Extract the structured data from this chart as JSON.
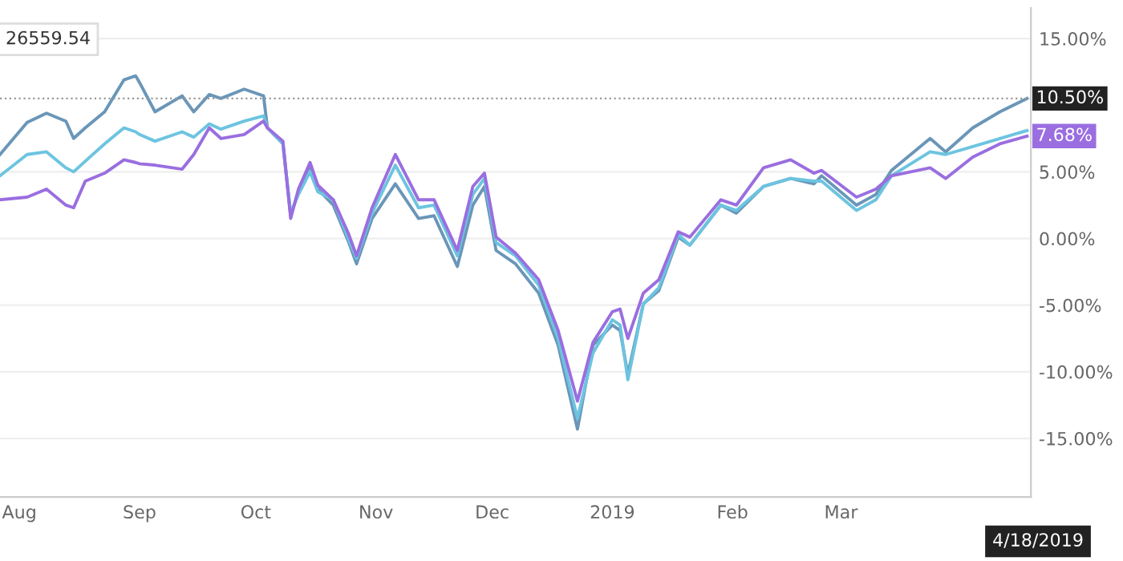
{
  "chart_data": {
    "type": "line",
    "x": [
      "2018-07-27",
      "2018-08-03",
      "2018-08-08",
      "2018-08-13",
      "2018-08-15",
      "2018-08-18",
      "2018-08-23",
      "2018-08-28",
      "2018-08-31",
      "2018-09-01",
      "2018-09-05",
      "2018-09-12",
      "2018-09-15",
      "2018-09-19",
      "2018-09-22",
      "2018-09-28",
      "2018-10-03",
      "2018-10-04",
      "2018-10-08",
      "2018-10-10",
      "2018-10-12",
      "2018-10-15",
      "2018-10-17",
      "2018-10-21",
      "2018-10-25",
      "2018-10-27",
      "2018-10-31",
      "2018-11-06",
      "2018-11-12",
      "2018-11-16",
      "2018-11-22",
      "2018-11-26",
      "2018-11-29",
      "2018-12-02",
      "2018-12-07",
      "2018-12-13",
      "2018-12-18",
      "2018-12-23",
      "2018-12-27",
      "2019-01-01",
      "2019-01-03",
      "2019-01-05",
      "2019-01-09",
      "2019-01-13",
      "2019-01-18",
      "2019-01-21",
      "2019-01-29",
      "2019-02-02",
      "2019-02-09",
      "2019-02-16",
      "2019-02-22",
      "2019-02-24",
      "2019-03-05",
      "2019-03-10",
      "2019-03-14",
      "2019-03-24",
      "2019-03-28",
      "2019-04-04",
      "2019-04-11",
      "2019-04-18"
    ],
    "series": [
      {
        "color": "#6a96b8",
        "values": [
          6.3,
          8.7,
          9.4,
          8.8,
          7.5,
          8.3,
          9.5,
          11.9,
          12.2,
          11.7,
          9.5,
          10.7,
          9.5,
          10.8,
          10.5,
          11.2,
          10.7,
          8.3,
          7.1,
          1.7,
          3.5,
          5.5,
          3.7,
          2.5,
          -0.3,
          -1.9,
          1.5,
          4.1,
          1.5,
          1.7,
          -2.1,
          2.5,
          3.9,
          -0.9,
          -1.9,
          -4.1,
          -8.0,
          -14.3,
          -8.0,
          -6.5,
          -6.9,
          -10.2,
          -4.9,
          -3.9,
          0.1,
          -0.5,
          2.5,
          1.9,
          3.9,
          4.5,
          4.1,
          4.7,
          2.5,
          3.3,
          5.1,
          7.5,
          6.5,
          8.3,
          9.5,
          10.5
        ]
      },
      {
        "color": "#6cc4e0",
        "values": [
          4.7,
          6.3,
          6.5,
          5.3,
          5.0,
          5.8,
          7.1,
          8.3,
          8.0,
          7.8,
          7.3,
          8.0,
          7.6,
          8.6,
          8.2,
          8.8,
          9.2,
          8.3,
          7.1,
          1.9,
          3.3,
          5.0,
          3.5,
          2.9,
          -0.1,
          -1.5,
          1.9,
          5.5,
          2.3,
          2.5,
          -1.3,
          3.3,
          4.5,
          -0.3,
          -1.3,
          -3.5,
          -7.5,
          -13.5,
          -8.6,
          -6.1,
          -6.5,
          -10.6,
          -4.9,
          -3.7,
          0.3,
          -0.5,
          2.5,
          2.1,
          3.9,
          4.5,
          4.3,
          4.3,
          2.1,
          2.9,
          4.7,
          6.5,
          6.3,
          6.9,
          7.5,
          8.1
        ]
      },
      {
        "color": "#9a6ee0",
        "values": [
          2.9,
          3.1,
          3.7,
          2.5,
          2.3,
          4.3,
          4.9,
          5.9,
          5.7,
          5.6,
          5.5,
          5.2,
          6.3,
          8.3,
          7.5,
          7.8,
          8.8,
          8.3,
          7.3,
          1.5,
          3.7,
          5.7,
          4.0,
          2.9,
          0.3,
          -1.3,
          2.3,
          6.3,
          2.9,
          2.9,
          -0.9,
          3.9,
          4.9,
          0.1,
          -1.1,
          -3.1,
          -6.9,
          -12.2,
          -7.8,
          -5.5,
          -5.3,
          -7.5,
          -4.1,
          -3.1,
          0.5,
          0.1,
          2.9,
          2.5,
          5.3,
          5.9,
          4.9,
          5.1,
          3.1,
          3.7,
          4.7,
          5.3,
          4.5,
          6.1,
          7.1,
          7.68
        ]
      }
    ],
    "xlim": [
      "2018-07-27",
      "2019-04-19"
    ],
    "xticks": [
      {
        "value": "2018-08-01",
        "label": "Aug"
      },
      {
        "value": "2018-09-01",
        "label": "Sep"
      },
      {
        "value": "2018-10-01",
        "label": "Oct"
      },
      {
        "value": "2018-11-01",
        "label": "Nov"
      },
      {
        "value": "2018-12-01",
        "label": "Dec"
      },
      {
        "value": "2019-01-01",
        "label": "2019"
      },
      {
        "value": "2019-02-01",
        "label": "Feb"
      },
      {
        "value": "2019-03-01",
        "label": "Mar"
      }
    ],
    "ylim": [
      -19.4,
      17.3
    ],
    "yticks": [
      {
        "value": 15,
        "label": "15.00%"
      },
      {
        "value": 5,
        "label": "5.00%"
      },
      {
        "value": 0,
        "label": "0.00%"
      },
      {
        "value": -5,
        "label": "-5.00%"
      },
      {
        "value": -10,
        "label": "-10.00%"
      },
      {
        "value": -15,
        "label": "-15.00%"
      }
    ],
    "ref_lines": [
      {
        "axis": "y",
        "value": 10.5,
        "color": "#999999",
        "line_style": "dotted"
      }
    ],
    "annotations": [
      "26559.54",
      {
        "text": "10.50%",
        "x": "2019-04-18",
        "y": 10.5
      },
      {
        "text": "7.68%",
        "x": "2019-04-18",
        "y": 7.68
      },
      "4/18/2019"
    ],
    "grid": "y",
    "legend": false,
    "marker": "none",
    "line_style": "solid"
  }
}
